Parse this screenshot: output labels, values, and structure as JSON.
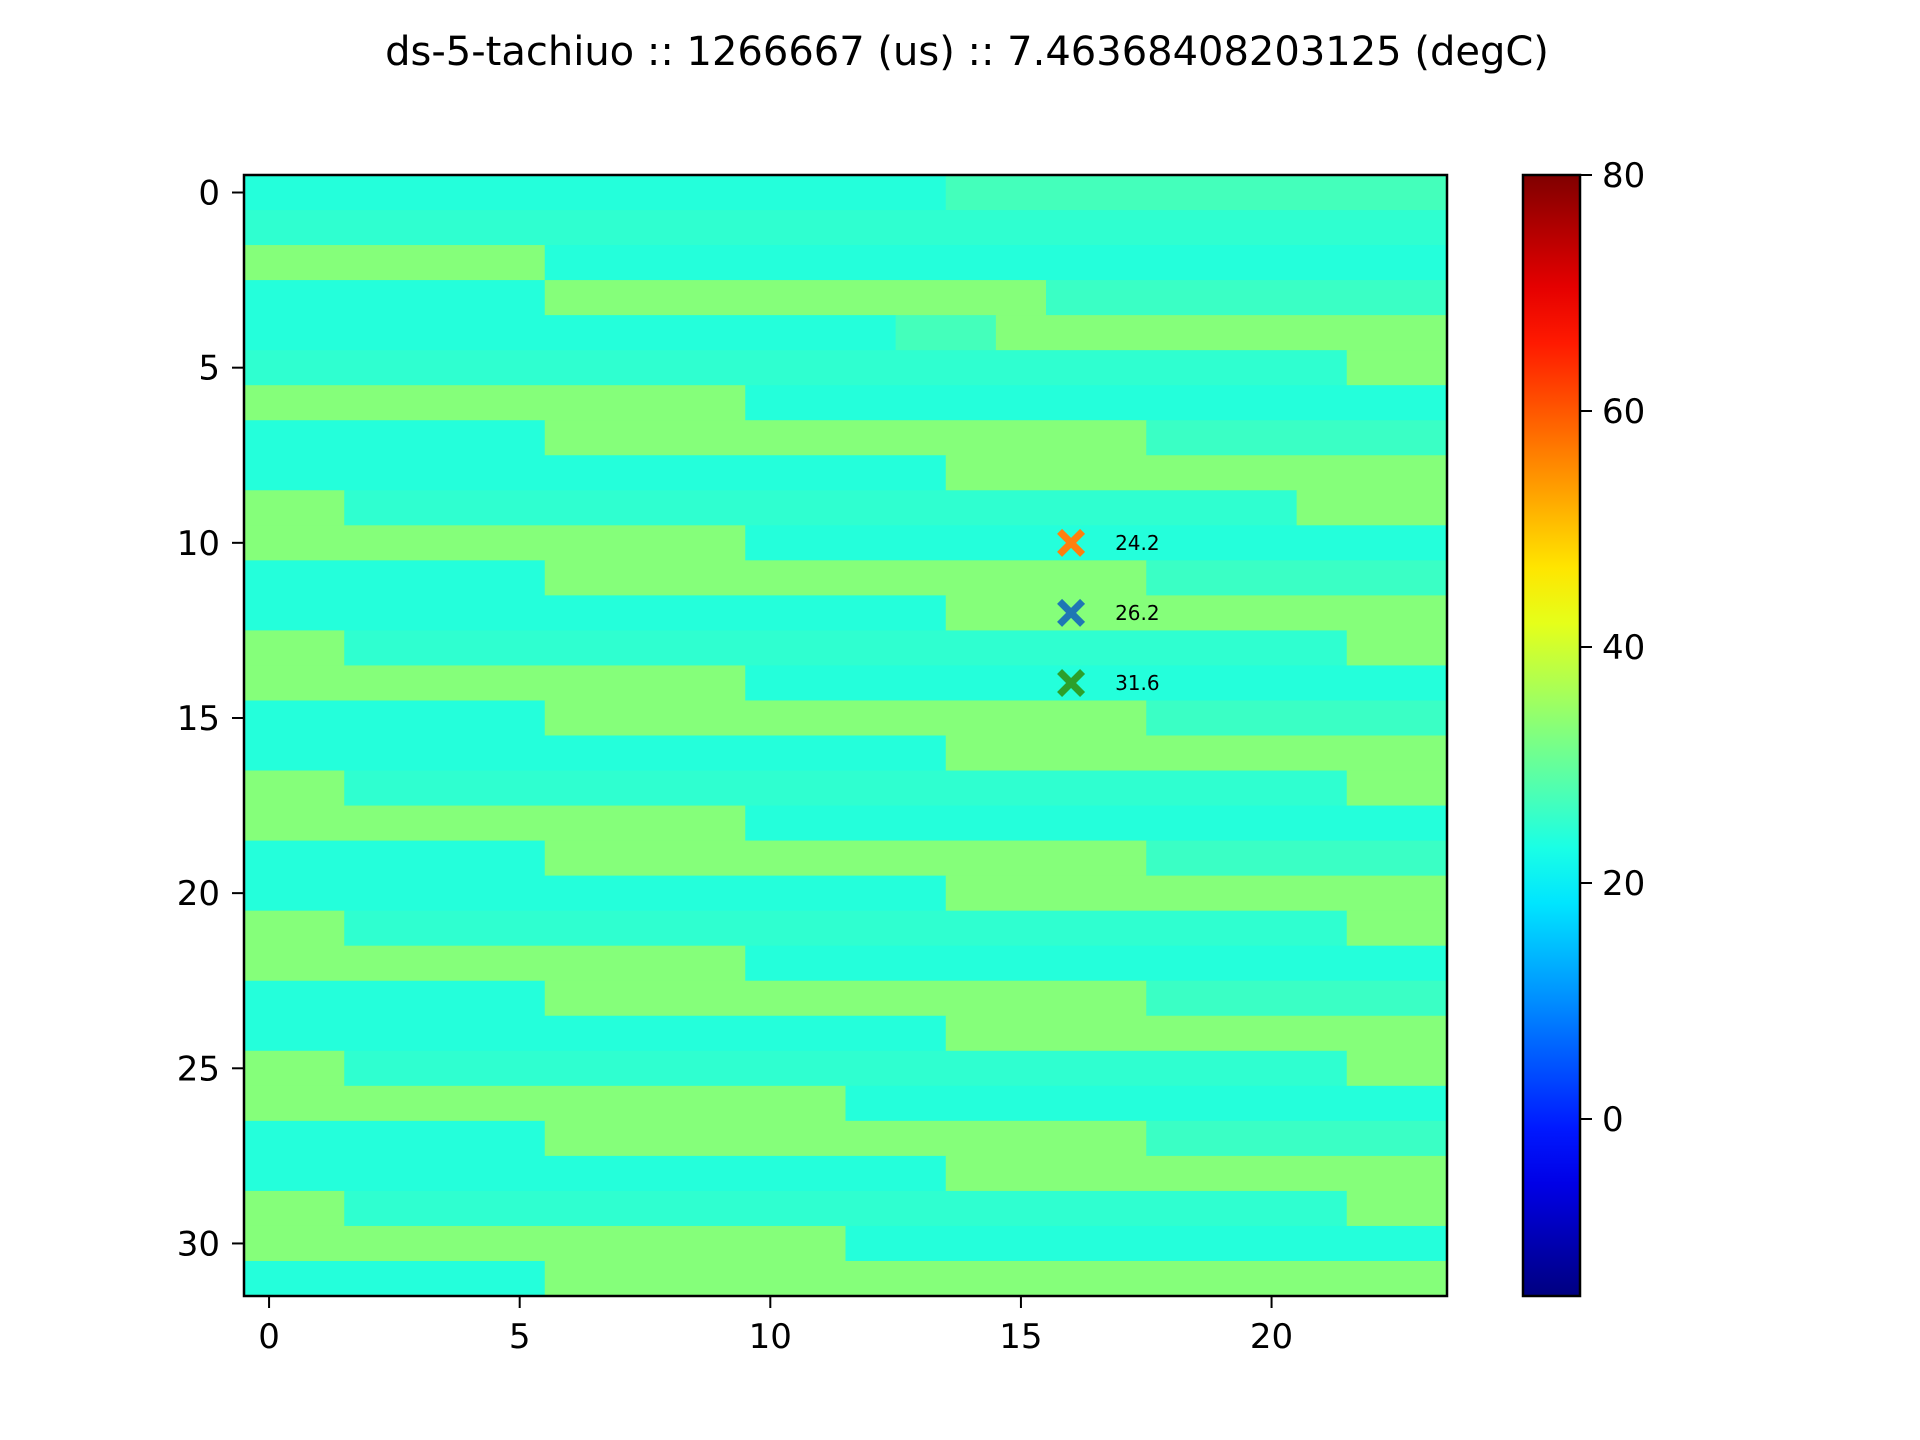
{
  "chart_data": {
    "type": "heatmap",
    "title": "ds-5-tachiuo :: 1266667 (us) :: 7.46368408203125 (degC)",
    "xlabel": "",
    "ylabel": "",
    "rows": 32,
    "cols": 24,
    "xlim": [
      -0.5,
      23.5
    ],
    "ylim": [
      31.5,
      -0.5
    ],
    "x_ticks": [
      0,
      5,
      10,
      15,
      20
    ],
    "y_ticks": [
      0,
      5,
      10,
      15,
      20,
      25,
      30
    ],
    "colormap": "jet",
    "colorbar": {
      "vmin": -15,
      "vmax": 80,
      "ticks": [
        0,
        20,
        40,
        60,
        80
      ]
    },
    "cold_value": 24,
    "warm_value": 33,
    "row_pattern": {
      "description": "each row: cold/warm segments as [start_col, end_col_exclusive, value]",
      "rows": [
        [
          [
            0,
            14,
            24
          ],
          [
            14,
            24,
            27
          ]
        ],
        [
          [
            0,
            24,
            25
          ]
        ],
        [
          [
            0,
            6,
            33
          ],
          [
            6,
            24,
            24
          ]
        ],
        [
          [
            0,
            6,
            24
          ],
          [
            6,
            16,
            33
          ],
          [
            16,
            24,
            26
          ]
        ],
        [
          [
            0,
            13,
            24
          ],
          [
            13,
            15,
            27
          ],
          [
            15,
            24,
            33
          ]
        ],
        [
          [
            0,
            22,
            25
          ],
          [
            22,
            24,
            33
          ]
        ],
        [
          [
            0,
            10,
            33
          ],
          [
            10,
            24,
            24
          ]
        ],
        [
          [
            0,
            6,
            24
          ],
          [
            6,
            18,
            33
          ],
          [
            18,
            24,
            26
          ]
        ],
        [
          [
            0,
            14,
            24
          ],
          [
            14,
            24,
            33
          ]
        ],
        [
          [
            0,
            2,
            33
          ],
          [
            2,
            21,
            25
          ],
          [
            21,
            24,
            33
          ]
        ],
        [
          [
            0,
            10,
            33
          ],
          [
            10,
            24,
            24
          ]
        ],
        [
          [
            0,
            6,
            24
          ],
          [
            6,
            18,
            33
          ],
          [
            18,
            24,
            26
          ]
        ],
        [
          [
            0,
            14,
            24
          ],
          [
            14,
            24,
            33
          ]
        ],
        [
          [
            0,
            2,
            33
          ],
          [
            2,
            22,
            25
          ],
          [
            22,
            24,
            33
          ]
        ],
        [
          [
            0,
            10,
            33
          ],
          [
            10,
            24,
            24
          ]
        ],
        [
          [
            0,
            6,
            24
          ],
          [
            6,
            18,
            33
          ],
          [
            18,
            24,
            26
          ]
        ],
        [
          [
            0,
            14,
            24
          ],
          [
            14,
            24,
            33
          ]
        ],
        [
          [
            0,
            2,
            33
          ],
          [
            2,
            22,
            25
          ],
          [
            22,
            24,
            33
          ]
        ],
        [
          [
            0,
            10,
            33
          ],
          [
            10,
            24,
            24
          ]
        ],
        [
          [
            0,
            6,
            24
          ],
          [
            6,
            18,
            33
          ],
          [
            18,
            24,
            26
          ]
        ],
        [
          [
            0,
            14,
            24
          ],
          [
            14,
            24,
            33
          ]
        ],
        [
          [
            0,
            2,
            33
          ],
          [
            2,
            22,
            25
          ],
          [
            22,
            24,
            33
          ]
        ],
        [
          [
            0,
            10,
            33
          ],
          [
            10,
            24,
            24
          ]
        ],
        [
          [
            0,
            6,
            24
          ],
          [
            6,
            18,
            33
          ],
          [
            18,
            24,
            26
          ]
        ],
        [
          [
            0,
            14,
            24
          ],
          [
            14,
            24,
            33
          ]
        ],
        [
          [
            0,
            2,
            33
          ],
          [
            2,
            22,
            25
          ],
          [
            22,
            24,
            33
          ]
        ],
        [
          [
            0,
            12,
            33
          ],
          [
            12,
            24,
            24
          ]
        ],
        [
          [
            0,
            6,
            24
          ],
          [
            6,
            18,
            33
          ],
          [
            18,
            24,
            26
          ]
        ],
        [
          [
            0,
            14,
            24
          ],
          [
            14,
            24,
            33
          ]
        ],
        [
          [
            0,
            2,
            33
          ],
          [
            2,
            22,
            25
          ],
          [
            22,
            24,
            33
          ]
        ],
        [
          [
            0,
            12,
            33
          ],
          [
            12,
            24,
            24
          ]
        ],
        [
          [
            0,
            6,
            24
          ],
          [
            6,
            24,
            33
          ]
        ]
      ]
    },
    "markers": [
      {
        "x": 16,
        "y": 10,
        "label": "24.2",
        "color": "#ff7f0e",
        "marker": "X"
      },
      {
        "x": 16,
        "y": 12,
        "label": "26.2",
        "color": "#1f77b4",
        "marker": "X"
      },
      {
        "x": 16,
        "y": 14,
        "label": "31.6",
        "color": "#2ca02c",
        "marker": "X"
      }
    ]
  }
}
